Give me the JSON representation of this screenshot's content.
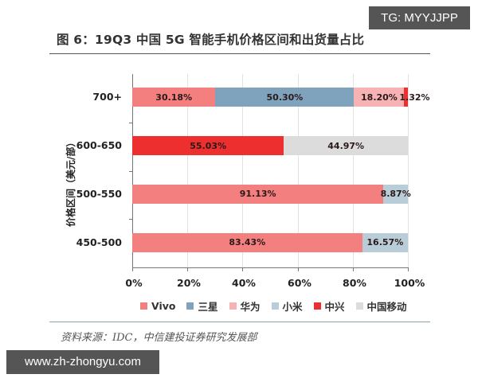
{
  "header": {
    "title": "图 6：19Q3 中国 5G 智能手机价格区间和出货量占比"
  },
  "watermarks": {
    "top_right": "TG: MYYJJPP",
    "bottom_left": "www.zh-zhongyu.com"
  },
  "footer": {
    "source": "资料来源：IDC，中信建投证券研究发展部"
  },
  "colors": {
    "Vivo": "#f47f7f",
    "三星": "#7fa3bd",
    "华为": "#f7b3b3",
    "小米": "#b9cdd8",
    "中兴": "#ee2f2f",
    "中国移动": "#dcdcdc"
  },
  "chart_data": {
    "type": "bar",
    "orientation": "horizontal",
    "stacked": "100%",
    "title": "19Q3 中国 5G 智能手机价格区间和出货量占比",
    "xlabel": "",
    "ylabel": "价格区间（美元/部）",
    "xlim": [
      0,
      100
    ],
    "x_ticks": [
      "0%",
      "20%",
      "40%",
      "60%",
      "80%",
      "100%"
    ],
    "grid": true,
    "legend_position": "bottom",
    "categories": [
      "700+",
      "600-650",
      "500-550",
      "450-500"
    ],
    "series": [
      {
        "name": "Vivo",
        "values": [
          30.18,
          0,
          91.13,
          83.43
        ]
      },
      {
        "name": "三星",
        "values": [
          50.3,
          0,
          0,
          0
        ]
      },
      {
        "name": "华为",
        "values": [
          18.2,
          0,
          0,
          0
        ]
      },
      {
        "name": "小米",
        "values": [
          0,
          0,
          8.87,
          16.57
        ]
      },
      {
        "name": "中兴",
        "values": [
          1.32,
          55.03,
          0,
          0
        ]
      },
      {
        "name": "中国移动",
        "values": [
          0,
          44.97,
          0,
          0
        ]
      }
    ],
    "bars": [
      {
        "category": "700+",
        "segments": [
          {
            "series": "Vivo",
            "value": 30.18,
            "label": "30.18%"
          },
          {
            "series": "三星",
            "value": 50.3,
            "label": "50.30%"
          },
          {
            "series": "华为",
            "value": 18.2,
            "label": "18.20%"
          },
          {
            "series": "中兴",
            "value": 1.32,
            "label": "1.32%"
          }
        ]
      },
      {
        "category": "600-650",
        "segments": [
          {
            "series": "中兴",
            "value": 55.03,
            "label": "55.03%"
          },
          {
            "series": "中国移动",
            "value": 44.97,
            "label": "44.97%"
          }
        ]
      },
      {
        "category": "500-550",
        "segments": [
          {
            "series": "Vivo",
            "value": 91.13,
            "label": "91.13%"
          },
          {
            "series": "小米",
            "value": 8.87,
            "label": "8.87%"
          }
        ]
      },
      {
        "category": "450-500",
        "segments": [
          {
            "series": "Vivo",
            "value": 83.43,
            "label": "83.43%"
          },
          {
            "series": "小米",
            "value": 16.57,
            "label": "16.57%"
          }
        ]
      }
    ],
    "legend": [
      "Vivo",
      "三星",
      "华为",
      "小米",
      "中兴",
      "中国移动"
    ]
  }
}
